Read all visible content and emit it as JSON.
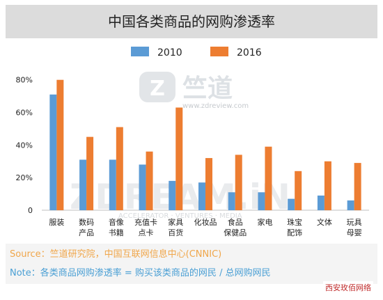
{
  "chart_data": {
    "type": "bar",
    "title": "中国各类商品的网购渗透率",
    "categories": [
      [
        "服装"
      ],
      [
        "数码",
        "产品"
      ],
      [
        "音像",
        "书籍"
      ],
      [
        "充值卡",
        "点卡"
      ],
      [
        "家具",
        "百货"
      ],
      [
        "化妆品"
      ],
      [
        "食品",
        "保健品"
      ],
      [
        "家电"
      ],
      [
        "珠宝",
        "配饰"
      ],
      [
        "文体"
      ],
      [
        "玩具",
        "母婴"
      ]
    ],
    "series": [
      {
        "name": "2010",
        "color": "#5b9bd5",
        "values": [
          71,
          31,
          31,
          28,
          18,
          17,
          11,
          11,
          7,
          9,
          6
        ]
      },
      {
        "name": "2016",
        "color": "#ed7d31",
        "values": [
          80,
          45,
          51,
          36,
          63,
          32,
          34,
          39,
          24,
          30,
          29
        ]
      }
    ],
    "yticks": [
      "0",
      "20%",
      "40%",
      "60%",
      "80%"
    ],
    "ylim": [
      0,
      85
    ],
    "grid": false,
    "legend_position": "top-center"
  },
  "watermarks": {
    "top_logo": "竺道",
    "top_url": "www.zdreview.com",
    "mid_logo": "ZDREAM.iN",
    "mid_sub": "ACCELERATOR · VENTURES · MEDIA"
  },
  "footer": {
    "source": "Source：竺道研究院，中国互联网信息中心(CNNIC)",
    "note": "Note：各类商品网购渗透率 = 购买该类商品的网民 / 总网购网民"
  },
  "corner_mark": "西安玫佰网络"
}
